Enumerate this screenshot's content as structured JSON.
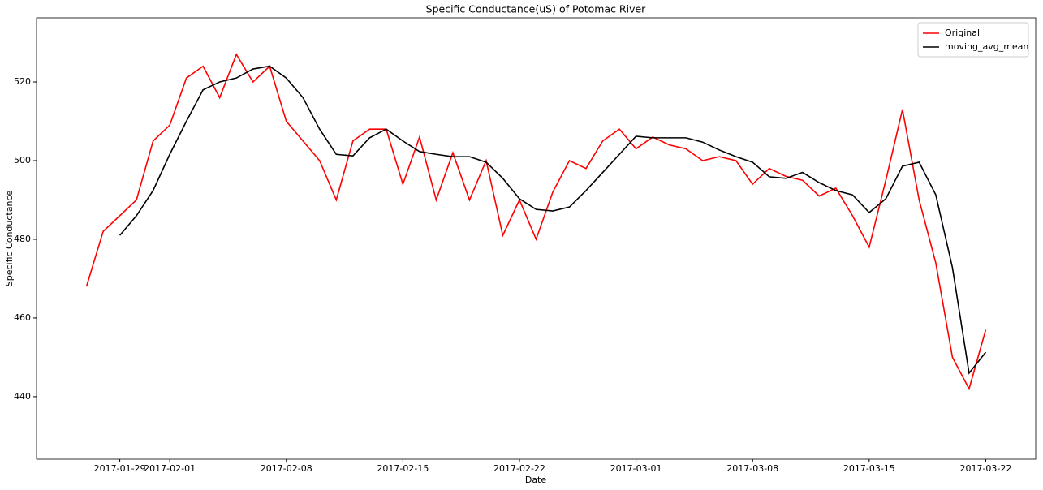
{
  "chart_data": {
    "type": "line",
    "title": "Specific Conductance(uS) of Potomac River",
    "x_label": "Date",
    "y_label": "Specific Conductance",
    "x": [
      "2017-01-27",
      "2017-01-28",
      "2017-01-29",
      "2017-01-30",
      "2017-01-31",
      "2017-02-01",
      "2017-02-02",
      "2017-02-03",
      "2017-02-04",
      "2017-02-05",
      "2017-02-06",
      "2017-02-07",
      "2017-02-08",
      "2017-02-09",
      "2017-02-10",
      "2017-02-11",
      "2017-02-12",
      "2017-02-13",
      "2017-02-14",
      "2017-02-15",
      "2017-02-16",
      "2017-02-17",
      "2017-02-18",
      "2017-02-19",
      "2017-02-20",
      "2017-02-21",
      "2017-02-22",
      "2017-02-23",
      "2017-02-24",
      "2017-02-25",
      "2017-02-26",
      "2017-02-27",
      "2017-02-28",
      "2017-03-01",
      "2017-03-02",
      "2017-03-03",
      "2017-03-04",
      "2017-03-05",
      "2017-03-06",
      "2017-03-07",
      "2017-03-08",
      "2017-03-09",
      "2017-03-10",
      "2017-03-11",
      "2017-03-12",
      "2017-03-13",
      "2017-03-14",
      "2017-03-15",
      "2017-03-16",
      "2017-03-17",
      "2017-03-18",
      "2017-03-19",
      "2017-03-20",
      "2017-03-21",
      "2017-03-22"
    ],
    "series": [
      {
        "name": "Original",
        "color": "#ff0000",
        "values": [
          468,
          482,
          486,
          490,
          505,
          509,
          521,
          524,
          516,
          527,
          520,
          524,
          510,
          505,
          500,
          490,
          505,
          508,
          508,
          494,
          506,
          490,
          502,
          490,
          500,
          481,
          490,
          480,
          492,
          500,
          498,
          505,
          508,
          503,
          506,
          504,
          503,
          500,
          501,
          500,
          494,
          498,
          496,
          495,
          491,
          493,
          486,
          478,
          495,
          513,
          490,
          474,
          450,
          442,
          457
        ]
      },
      {
        "name": "moving_avg_mean",
        "color": "#000000",
        "values": [
          null,
          null,
          481,
          486,
          492.4,
          501.6,
          510,
          518,
          520,
          521,
          523.3,
          524,
          521,
          516,
          508,
          501.6,
          501.2,
          505.8,
          508,
          505,
          502.3,
          501.6,
          501,
          501,
          499.6,
          495.5,
          490.3,
          487.6,
          487.2,
          488.2,
          492.4,
          497,
          501.6,
          506.2,
          505.8,
          505.8,
          505.8,
          504.7,
          502.7,
          501,
          499.6,
          495.9,
          495.5,
          497,
          494.4,
          492.4,
          491.3,
          486.8,
          490.3,
          498.6,
          499.6,
          491.3,
          472.8,
          446,
          451.3
        ]
      }
    ],
    "xlim": [
      "2017-01-24",
      "2017-03-25"
    ],
    "xticks": [
      "2017-01-29",
      "2017-02-01",
      "2017-02-08",
      "2017-02-15",
      "2017-02-22",
      "2017-03-01",
      "2017-03-08",
      "2017-03-15",
      "2017-03-22"
    ],
    "ylim": [
      424.1,
      536.3
    ],
    "yticks": [
      440,
      460,
      480,
      500,
      520
    ],
    "grid": false,
    "legend": "upper right"
  }
}
